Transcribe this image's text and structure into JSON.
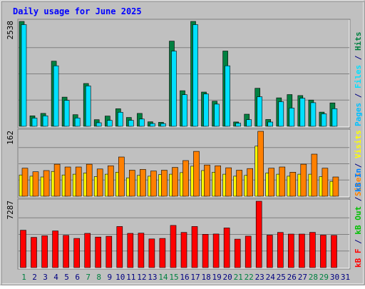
{
  "chart_data": {
    "type": "bar",
    "title": "Daily usage for June 2025",
    "colors": {
      "background": "#c0c0c0",
      "plot_bg": "#c0c0c0",
      "grid": "#808080",
      "title": "#0000ff",
      "hits": "#008040",
      "files": "#00e0ff",
      "pages": "#00c0ff",
      "visits": "#ffff00",
      "sites": "#ff8000",
      "kbin": "#0080ff",
      "kbout": "#00c000",
      "kbf": "#ff0000",
      "weekend_day": "#008040",
      "weekday": "#000080"
    },
    "x": {
      "days": [
        "1",
        "2",
        "3",
        "4",
        "5",
        "6",
        "7",
        "8",
        "9",
        "10",
        "11",
        "12",
        "13",
        "14",
        "15",
        "16",
        "17",
        "18",
        "19",
        "20",
        "21",
        "22",
        "23",
        "24",
        "25",
        "26",
        "27",
        "28",
        "29",
        "30",
        "31"
      ],
      "weekend_days": [
        "1",
        "7",
        "8",
        "14",
        "15",
        "21",
        "22",
        "28",
        "29"
      ]
    },
    "panels": [
      {
        "id": "hits",
        "max_label": "2538",
        "legend": [
          {
            "text": "Pages",
            "color_key": "pages"
          },
          {
            "text": " / ",
            "color_key": "weekday"
          },
          {
            "text": "Files",
            "color_key": "files"
          },
          {
            "text": " / ",
            "color_key": "weekday"
          },
          {
            "text": "Hits",
            "color_key": "hits"
          }
        ],
        "series": [
          {
            "name": "Hits",
            "color_key": "hits",
            "values": [
              2538,
              254,
              313,
              1576,
              706,
              281,
              1036,
              161,
              249,
              425,
              214,
              313,
              108,
              97,
              2062,
              861,
              2538,
              829,
              607,
              1822,
              105,
              293,
              920,
              166,
              689,
              768,
              744,
              636,
              343,
              566
            ]
          },
          {
            "name": "Files",
            "color_key": "files",
            "values": [
              2460,
              198,
              254,
              1464,
              626,
              202,
              978,
              86,
              144,
              340,
              145,
              176,
              68,
              66,
              1820,
              764,
              2460,
              782,
              537,
              1464,
              76,
              161,
              714,
              103,
              595,
              442,
              681,
              571,
              303,
              427
            ]
          },
          {
            "name": "Pages",
            "color_key": "pages",
            "values": [
              0,
              0,
              0,
              0,
              0,
              0,
              0,
              0,
              0,
              0,
              0,
              0,
              0,
              0,
              0,
              0,
              0,
              0,
              0,
              0,
              0,
              0,
              0,
              0,
              0,
              0,
              0,
              0,
              0,
              0
            ]
          }
        ],
        "ymax": 2538,
        "gridlines": 3
      },
      {
        "id": "visits",
        "max_label": "162",
        "legend": [
          {
            "text": "Sites",
            "color_key": "sites"
          },
          {
            "text": " / ",
            "color_key": "weekday"
          },
          {
            "text": "Visits",
            "color_key": "visits"
          }
        ],
        "series": [
          {
            "name": "Visits",
            "color_key": "visits",
            "values": [
              53,
              50,
              48,
              62,
              53,
              55,
              58,
              49,
              55,
              60,
              46,
              52,
              50,
              54,
              55,
              59,
              75,
              64,
              60,
              55,
              50,
              52,
              125,
              58,
              55,
              50,
              55,
              55,
              49,
              37
            ]
          },
          {
            "name": "Sites",
            "color_key": "sites",
            "values": [
              70,
              61,
              64,
              80,
              73,
              73,
              80,
              68,
              76,
              98,
              65,
              67,
              63,
              65,
              72,
              89,
              112,
              78,
              76,
              71,
              65,
              69,
              162,
              70,
              73,
              60,
              80,
              105,
              70,
              48
            ]
          }
        ],
        "ymax": 162,
        "gridlines": 3
      },
      {
        "id": "kbytes",
        "max_label": "7287",
        "legend": [
          {
            "text": "kB F",
            "color_key": "kbf"
          },
          {
            "text": " / ",
            "color_key": "weekday"
          },
          {
            "text": "kB Out",
            "color_key": "kbout"
          },
          {
            "text": " / ",
            "color_key": "weekday"
          },
          {
            "text": "kB In",
            "color_key": "kbin"
          }
        ],
        "series": [
          {
            "name": "kB F",
            "color_key": "kbf",
            "values": [
              4105,
              3321,
              3491,
              4029,
              3544,
              3207,
              3760,
              3357,
              3436,
              4513,
              3759,
              3788,
              3152,
              3204,
              4627,
              3865,
              4513,
              3659,
              3692,
              4358,
              3126,
              3452,
              7287,
              3568,
              3864,
              3682,
              3686,
              3868,
              3565,
              3544
            ]
          }
        ],
        "ymax": 7287,
        "gridlines": 3
      }
    ]
  }
}
